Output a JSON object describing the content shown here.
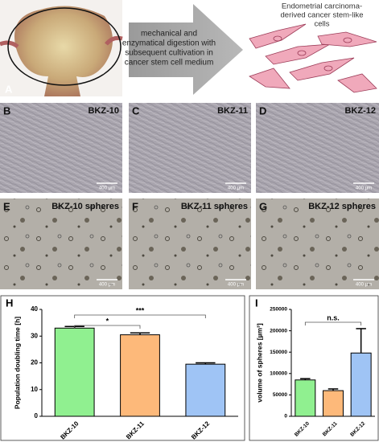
{
  "panel_a": {
    "label": "A",
    "text_lines": [
      "mechanical and",
      "enzymatical digestion with",
      "subsequent cultivation in",
      "cancer stem cell medium"
    ],
    "result_lines": [
      "Endometrial carcinoma-",
      "derived cancer stem-like",
      "cells"
    ]
  },
  "images": [
    {
      "letter": "B",
      "name": "BKZ-10",
      "scale": "400 µm"
    },
    {
      "letter": "C",
      "name": "BKZ-11",
      "scale": "400 µm"
    },
    {
      "letter": "D",
      "name": "BKZ-12",
      "scale": "400 µm"
    },
    {
      "letter": "E",
      "name": "BKZ-10 spheres",
      "scale": "400 µm"
    },
    {
      "letter": "F",
      "name": "BKZ-11 spheres",
      "scale": "400 µm"
    },
    {
      "letter": "G",
      "name": "BKZ-12 spheres",
      "scale": "400 µm"
    }
  ],
  "chart_data": [
    {
      "type": "bar",
      "letter": "H",
      "ylabel": "Population doubling time [h]",
      "categories": [
        "BKZ-10",
        "BKZ-11",
        "BKZ-12"
      ],
      "values": [
        33,
        30.5,
        19.5
      ],
      "errors": [
        0.6,
        0.7,
        0.5
      ],
      "colors": [
        "#90f090",
        "#fdb97a",
        "#9fc4f5"
      ],
      "ylim": [
        0,
        40
      ],
      "yticks": [
        0,
        10,
        20,
        30,
        40
      ],
      "annotations": [
        "*",
        "***"
      ]
    },
    {
      "type": "bar",
      "letter": "I",
      "ylabel": "volume of spheres [µm³]",
      "categories": [
        "BKZ-10",
        "BKZ-11",
        "BKZ-12"
      ],
      "values": [
        85000,
        60000,
        148000
      ],
      "errors": [
        3000,
        4000,
        57000
      ],
      "colors": [
        "#90f090",
        "#fdb97a",
        "#9fc4f5"
      ],
      "ylim": [
        0,
        250000
      ],
      "yticks": [
        0,
        50000,
        100000,
        150000,
        200000,
        250000
      ],
      "annotations": [
        "n.s."
      ]
    }
  ]
}
